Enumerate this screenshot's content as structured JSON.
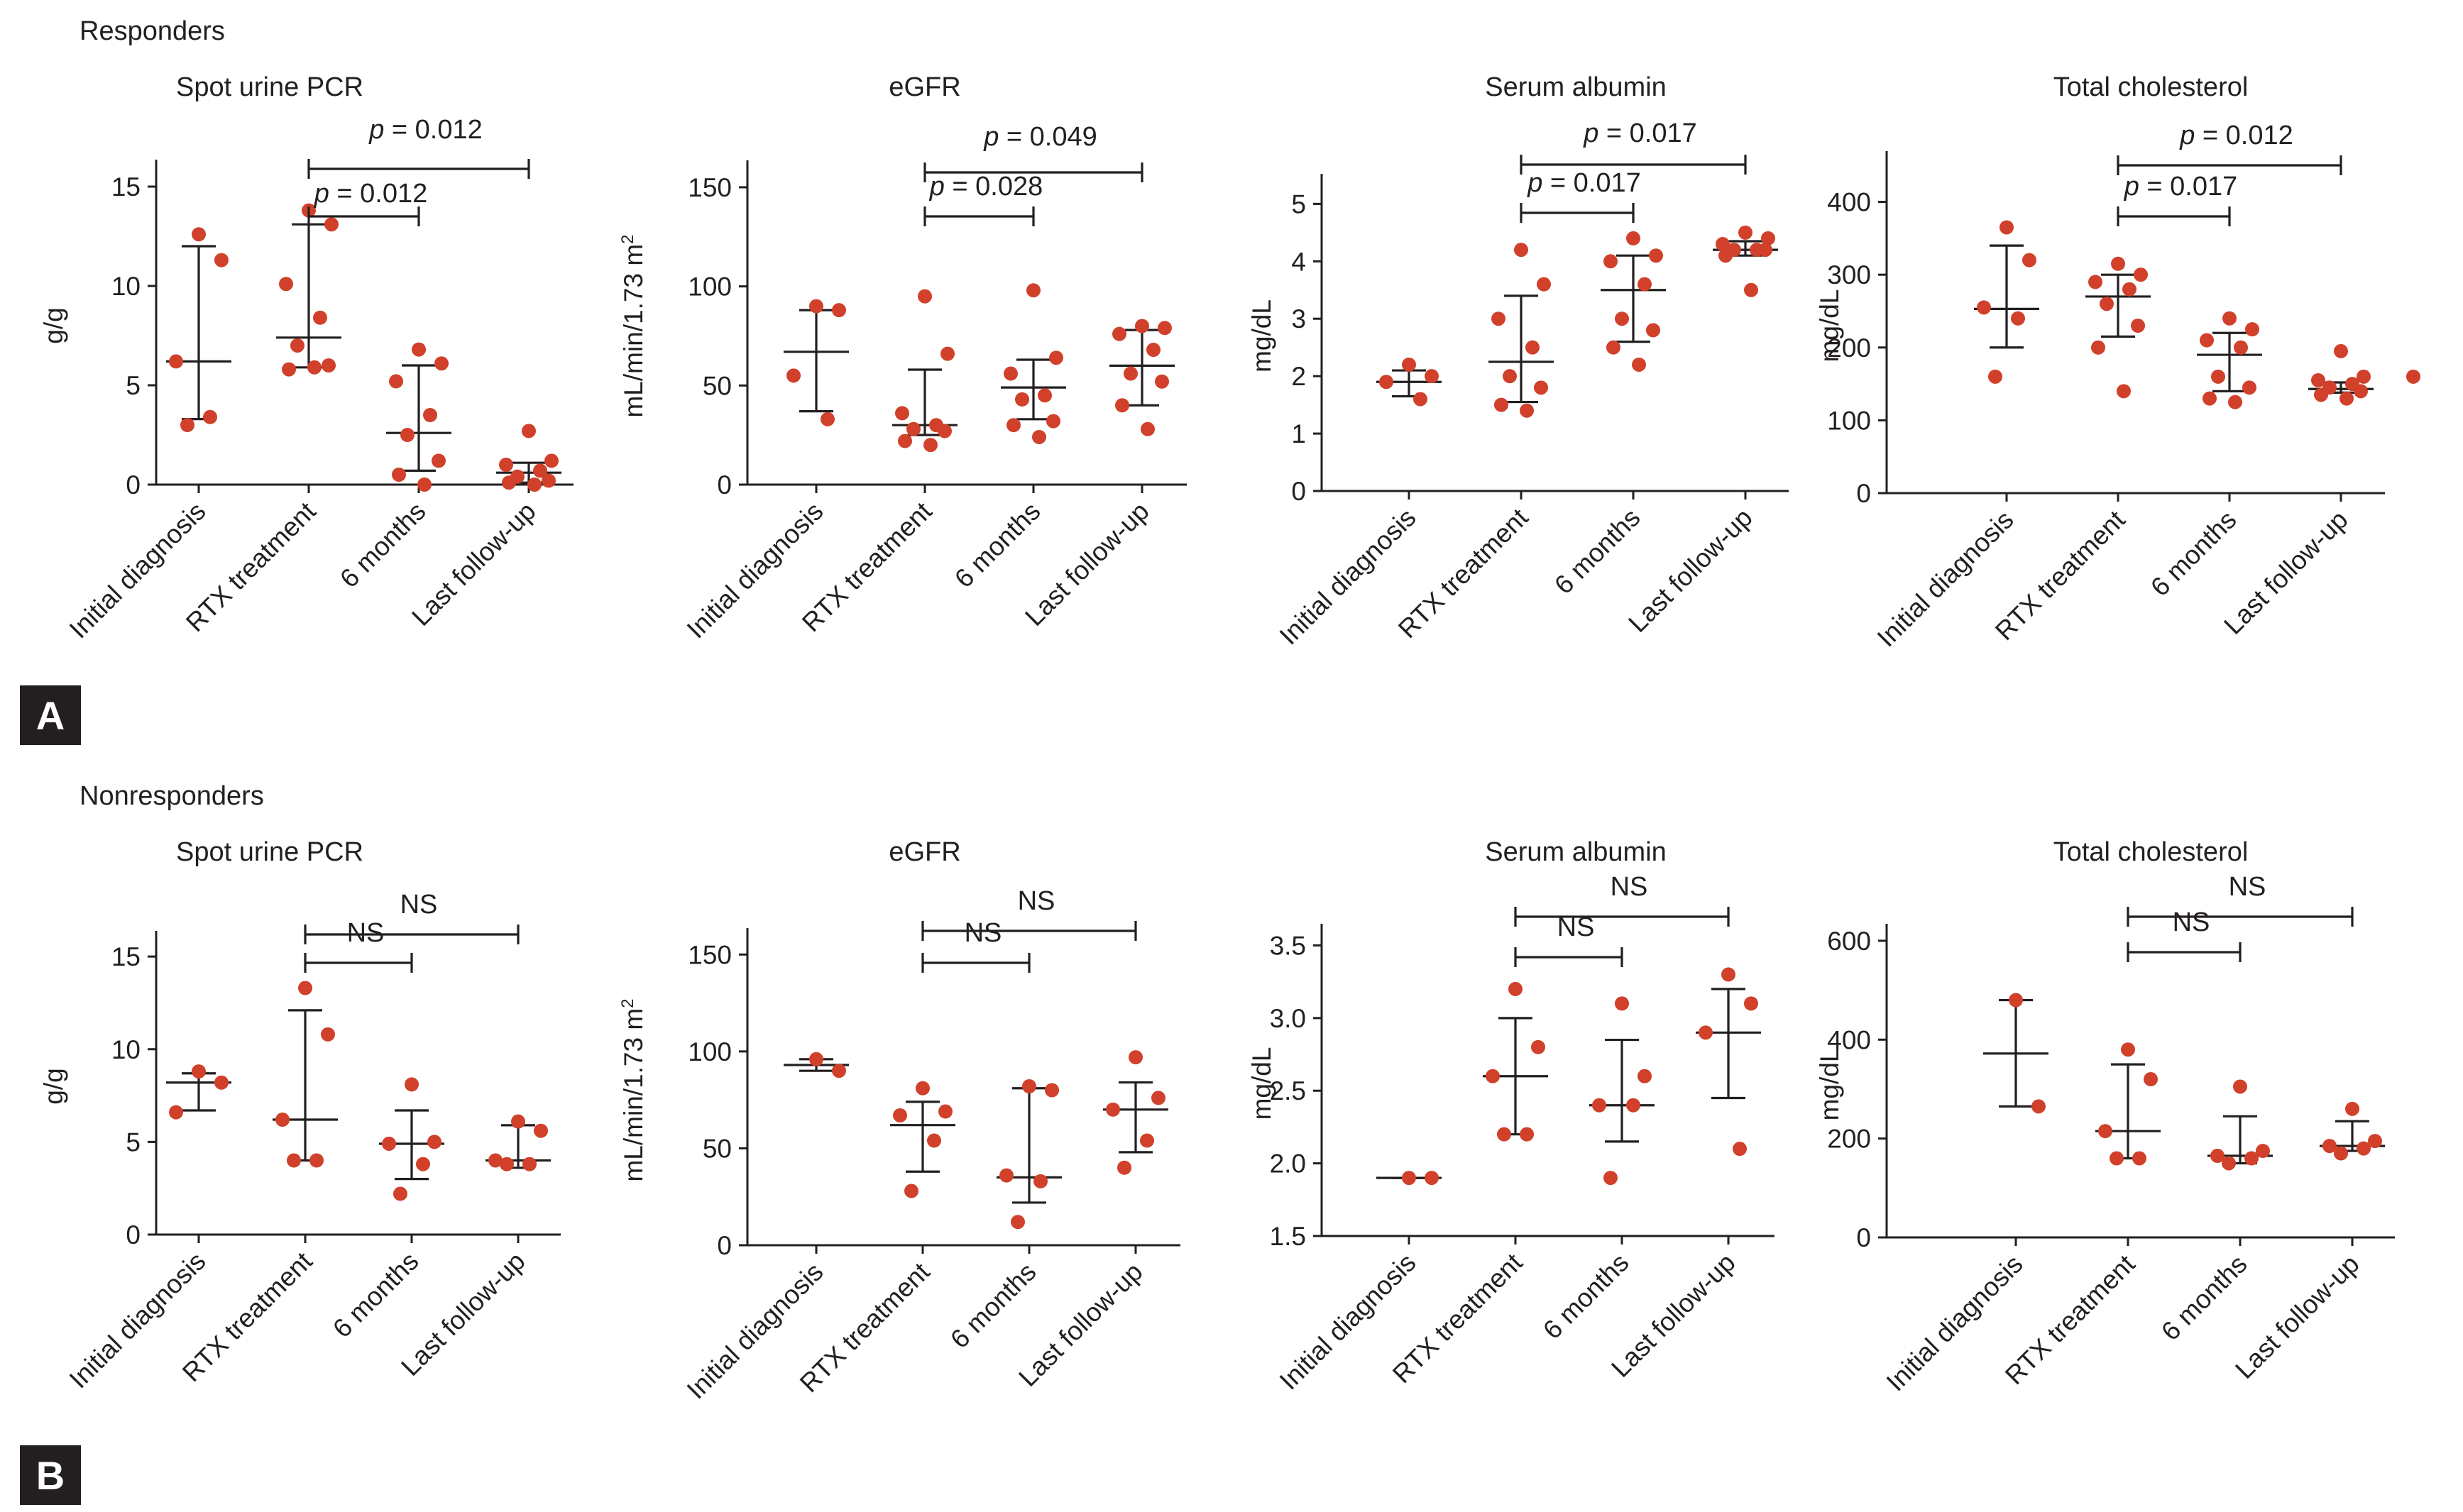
{
  "colors": {
    "dot": "#d0402a",
    "ink": "#231f20",
    "panel_box": "#231f20"
  },
  "panels": [
    {
      "letter": "A",
      "section_title": "Responders"
    },
    {
      "letter": "B",
      "section_title": "Nonresponders"
    }
  ],
  "chart_data": [
    {
      "type": "scatter",
      "panel": "A",
      "title": "Spot urine PCR",
      "xlabel": "",
      "ylabel": "g/g",
      "categories": [
        "Initial diagnosis",
        "RTX treatment",
        "6 months",
        "Last follow-up"
      ],
      "ylim": [
        0,
        16
      ],
      "yticks": [
        0,
        5,
        10,
        15
      ],
      "ytick_labels": [
        "0",
        "5",
        "10",
        "15"
      ],
      "series": [
        {
          "name": "Initial diagnosis",
          "points": [
            12.6,
            11.3,
            6.2,
            3.4,
            3.0
          ],
          "median": 6.2,
          "iqr": [
            3.3,
            12.0
          ]
        },
        {
          "name": "RTX treatment",
          "points": [
            13.8,
            13.1,
            10.1,
            8.4,
            7.0,
            6.0,
            5.8,
            5.9
          ],
          "median": 7.4,
          "iqr": [
            5.9,
            13.1
          ]
        },
        {
          "name": "6 months",
          "points": [
            6.8,
            6.1,
            5.2,
            3.5,
            2.5,
            1.2,
            0.5,
            0.0
          ],
          "median": 2.6,
          "iqr": [
            0.7,
            6.0
          ]
        },
        {
          "name": "Last follow-up",
          "points": [
            2.7,
            1.2,
            1.0,
            0.7,
            0.4,
            0.2,
            0.1,
            0.0
          ],
          "median": 0.6,
          "iqr": [
            0.1,
            1.1
          ]
        }
      ],
      "comparisons": [
        {
          "from": "RTX treatment",
          "to": "6 months",
          "label": "p = 0.012"
        },
        {
          "from": "RTX treatment",
          "to": "Last follow-up",
          "label": "p = 0.012"
        }
      ]
    },
    {
      "type": "scatter",
      "panel": "A",
      "title": "eGFR",
      "xlabel": "",
      "ylabel": "mL/min/1.73 m²",
      "categories": [
        "Initial diagnosis",
        "RTX treatment",
        "6 months",
        "Last follow-up"
      ],
      "ylim": [
        0,
        160
      ],
      "yticks": [
        0,
        50,
        100,
        150
      ],
      "ytick_labels": [
        "0",
        "50",
        "100",
        "150"
      ],
      "series": [
        {
          "name": "Initial diagnosis",
          "points": [
            90,
            88,
            55,
            33
          ],
          "median": 67,
          "iqr": [
            37,
            88
          ]
        },
        {
          "name": "RTX treatment",
          "points": [
            95,
            66,
            36,
            30,
            28,
            27,
            22,
            20
          ],
          "median": 30,
          "iqr": [
            25,
            58
          ]
        },
        {
          "name": "6 months",
          "points": [
            98,
            64,
            56,
            45,
            43,
            32,
            30,
            24
          ],
          "median": 49,
          "iqr": [
            33,
            63
          ]
        },
        {
          "name": "Last follow-up",
          "points": [
            80,
            79,
            76,
            68,
            56,
            52,
            40,
            28
          ],
          "median": 60,
          "iqr": [
            40,
            78
          ]
        }
      ],
      "comparisons": [
        {
          "from": "RTX treatment",
          "to": "6 months",
          "label": "p = 0.028"
        },
        {
          "from": "RTX treatment",
          "to": "Last follow-up",
          "label": "p = 0.049"
        }
      ]
    },
    {
      "type": "scatter",
      "panel": "A",
      "title": "Serum albumin",
      "xlabel": "",
      "ylabel": "mg/dL",
      "categories": [
        "Initial diagnosis",
        "RTX treatment",
        "6 months",
        "Last follow-up"
      ],
      "ylim": [
        0,
        5.4
      ],
      "yticks": [
        0,
        1,
        2,
        3,
        4,
        5
      ],
      "ytick_labels": [
        "0",
        "1",
        "2",
        "3",
        "4",
        "5"
      ],
      "series": [
        {
          "name": "Initial diagnosis",
          "points": [
            2.2,
            2.0,
            1.9,
            1.6
          ],
          "median": 1.9,
          "iqr": [
            1.65,
            2.1
          ]
        },
        {
          "name": "RTX treatment",
          "points": [
            4.2,
            3.6,
            3.0,
            2.5,
            2.0,
            1.8,
            1.5,
            1.4
          ],
          "median": 2.25,
          "iqr": [
            1.55,
            3.4
          ]
        },
        {
          "name": "6 months",
          "points": [
            4.4,
            4.1,
            4.0,
            3.6,
            3.0,
            2.8,
            2.5,
            2.2
          ],
          "median": 3.5,
          "iqr": [
            2.6,
            4.1
          ]
        },
        {
          "name": "Last follow-up",
          "points": [
            4.5,
            4.4,
            4.3,
            4.2,
            4.2,
            4.2,
            4.1,
            3.5
          ],
          "median": 4.2,
          "iqr": [
            4.1,
            4.35
          ]
        }
      ],
      "comparisons": [
        {
          "from": "RTX treatment",
          "to": "6 months",
          "label": "p = 0.017"
        },
        {
          "from": "RTX treatment",
          "to": "Last follow-up",
          "label": "p = 0.017"
        }
      ]
    },
    {
      "type": "scatter",
      "panel": "A",
      "title": "Total cholesterol",
      "xlabel": "",
      "ylabel": "mg/dL",
      "categories": [
        "Initial diagnosis",
        "RTX treatment",
        "6 months",
        "Last follow-up"
      ],
      "ylim": [
        0,
        460
      ],
      "yticks": [
        0,
        100,
        200,
        300,
        400
      ],
      "ytick_labels": [
        "0",
        "100",
        "200",
        "300",
        "400"
      ],
      "series": [
        {
          "name": "Initial diagnosis",
          "points": [
            365,
            320,
            255,
            240,
            160
          ],
          "median": 253,
          "iqr": [
            200,
            340
          ]
        },
        {
          "name": "RTX treatment",
          "points": [
            315,
            300,
            290,
            280,
            260,
            230,
            200,
            140
          ],
          "median": 270,
          "iqr": [
            215,
            300
          ]
        },
        {
          "name": "6 months",
          "points": [
            240,
            225,
            210,
            200,
            160,
            145,
            130,
            125
          ],
          "median": 190,
          "iqr": [
            140,
            220
          ]
        },
        {
          "name": "Last follow-up",
          "points": [
            195,
            160,
            155,
            150,
            145,
            140,
            135,
            130
          ],
          "median": 143,
          "iqr": [
            138,
            152
          ]
        },
        {
          "name": "outlier",
          "points": [
            160
          ]
        }
      ],
      "comparisons": [
        {
          "from": "RTX treatment",
          "to": "6 months",
          "label": "p = 0.017"
        },
        {
          "from": "RTX treatment",
          "to": "Last follow-up",
          "label": "p = 0.012"
        }
      ]
    },
    {
      "type": "scatter",
      "panel": "B",
      "title": "Spot urine PCR",
      "xlabel": "",
      "ylabel": "g/g",
      "categories": [
        "Initial diagnosis",
        "RTX treatment",
        "6 months",
        "Last follow-up"
      ],
      "ylim": [
        0,
        16
      ],
      "yticks": [
        0,
        5,
        10,
        15
      ],
      "ytick_labels": [
        "0",
        "5",
        "10",
        "15"
      ],
      "series": [
        {
          "name": "Initial diagnosis",
          "points": [
            8.8,
            8.2,
            6.6
          ],
          "median": 8.2,
          "iqr": [
            6.7,
            8.7
          ]
        },
        {
          "name": "RTX treatment",
          "points": [
            13.3,
            10.8,
            6.2,
            4.0,
            4.0
          ],
          "median": 6.2,
          "iqr": [
            4.0,
            12.1
          ]
        },
        {
          "name": "6 months",
          "points": [
            8.1,
            5.0,
            4.9,
            3.8,
            2.2
          ],
          "median": 4.9,
          "iqr": [
            3.0,
            6.7
          ]
        },
        {
          "name": "Last follow-up",
          "points": [
            6.1,
            5.6,
            4.0,
            3.8,
            3.8
          ],
          "median": 4.0,
          "iqr": [
            3.6,
            5.9
          ]
        }
      ],
      "comparisons": [
        {
          "from": "RTX treatment",
          "to": "6 months",
          "label": "NS"
        },
        {
          "from": "RTX treatment",
          "to": "Last follow-up",
          "label": "NS"
        }
      ]
    },
    {
      "type": "scatter",
      "panel": "B",
      "title": "eGFR",
      "xlabel": "",
      "ylabel": "mL/min/1.73 m²",
      "categories": [
        "Initial diagnosis",
        "RTX treatment",
        "6 months",
        "Last follow-up"
      ],
      "ylim": [
        0,
        160
      ],
      "yticks": [
        0,
        50,
        100,
        150
      ],
      "ytick_labels": [
        "0",
        "50",
        "100",
        "150"
      ],
      "series": [
        {
          "name": "Initial diagnosis",
          "points": [
            96,
            90
          ],
          "median": 93,
          "iqr": [
            90,
            96
          ]
        },
        {
          "name": "RTX treatment",
          "points": [
            81,
            69,
            67,
            54,
            28
          ],
          "median": 62,
          "iqr": [
            38,
            74
          ]
        },
        {
          "name": "6 months",
          "points": [
            82,
            80,
            36,
            33,
            12
          ],
          "median": 35,
          "iqr": [
            22,
            81
          ]
        },
        {
          "name": "Last follow-up",
          "points": [
            97,
            76,
            70,
            54,
            40
          ],
          "median": 70,
          "iqr": [
            48,
            84
          ]
        }
      ],
      "comparisons": [
        {
          "from": "RTX treatment",
          "to": "6 months",
          "label": "NS"
        },
        {
          "from": "RTX treatment",
          "to": "Last follow-up",
          "label": "NS"
        }
      ]
    },
    {
      "type": "scatter",
      "panel": "B",
      "title": "Serum albumin",
      "xlabel": "",
      "ylabel": "mg/dL",
      "categories": [
        "Initial diagnosis",
        "RTX treatment",
        "6 months",
        "Last follow-up"
      ],
      "ylim": [
        1.5,
        3.6
      ],
      "yticks": [
        1.5,
        2.0,
        2.5,
        3.0,
        3.5
      ],
      "ytick_labels": [
        "1.5",
        "2.0",
        "2.5",
        "3.0",
        "3.5"
      ],
      "series": [
        {
          "name": "Initial diagnosis",
          "points": [
            1.9,
            1.9
          ],
          "median": 1.9,
          "iqr": [
            1.9,
            1.9
          ]
        },
        {
          "name": "RTX treatment",
          "points": [
            3.2,
            2.8,
            2.6,
            2.2,
            2.2
          ],
          "median": 2.6,
          "iqr": [
            2.2,
            3.0
          ]
        },
        {
          "name": "6 months",
          "points": [
            3.1,
            2.6,
            2.4,
            2.4,
            1.9
          ],
          "median": 2.4,
          "iqr": [
            2.15,
            2.85
          ]
        },
        {
          "name": "Last follow-up",
          "points": [
            3.3,
            3.1,
            2.9,
            2.1
          ],
          "median": 2.9,
          "iqr": [
            2.45,
            3.2
          ]
        }
      ],
      "comparisons": [
        {
          "from": "RTX treatment",
          "to": "6 months",
          "label": "NS"
        },
        {
          "from": "RTX treatment",
          "to": "Last follow-up",
          "label": "NS"
        }
      ]
    },
    {
      "type": "scatter",
      "panel": "B",
      "title": "Total cholesterol",
      "xlabel": "",
      "ylabel": "mg/dL",
      "categories": [
        "Initial diagnosis",
        "RTX treatment",
        "6 months",
        "Last follow-up"
      ],
      "ylim": [
        0,
        620
      ],
      "yticks": [
        0,
        200,
        400,
        600
      ],
      "ytick_labels": [
        "0",
        "200",
        "400",
        "600"
      ],
      "series": [
        {
          "name": "Initial diagnosis",
          "points": [
            480,
            265
          ],
          "median": 372,
          "iqr": [
            265,
            480
          ]
        },
        {
          "name": "RTX treatment",
          "points": [
            380,
            320,
            215,
            160,
            160
          ],
          "median": 215,
          "iqr": [
            160,
            350
          ]
        },
        {
          "name": "6 months",
          "points": [
            305,
            175,
            165,
            160,
            150
          ],
          "median": 165,
          "iqr": [
            150,
            245
          ]
        },
        {
          "name": "Last follow-up",
          "points": [
            260,
            195,
            185,
            180,
            170
          ],
          "median": 185,
          "iqr": [
            175,
            235
          ]
        }
      ],
      "comparisons": [
        {
          "from": "RTX treatment",
          "to": "6 months",
          "label": "NS"
        },
        {
          "from": "RTX treatment",
          "to": "Last follow-up",
          "label": "NS"
        }
      ]
    }
  ]
}
